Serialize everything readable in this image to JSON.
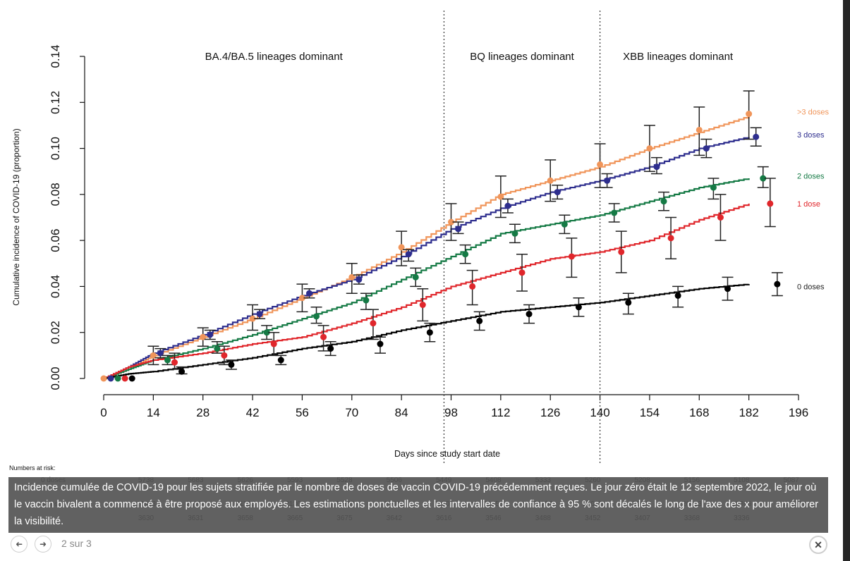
{
  "chart_data": {
    "type": "line",
    "title": "",
    "xlabel": "Days since study start date",
    "ylabel": "Cumulative incidence of COVID-19 (proportion)",
    "xlim": [
      0,
      196
    ],
    "ylim": [
      0,
      0.14
    ],
    "x_ticks": [
      0,
      14,
      28,
      42,
      56,
      70,
      84,
      98,
      112,
      126,
      140,
      154,
      168,
      182,
      196
    ],
    "y_ticks": [
      "0.00",
      "0.02",
      "0.04",
      "0.06",
      "0.08",
      "0.10",
      "0.12",
      "0.14"
    ],
    "grid": false,
    "period_dividers": [
      96,
      140
    ],
    "period_labels": [
      {
        "text": "BA.4/BA.5 lineages dominant",
        "x_center": 48
      },
      {
        "text": "BQ lineages dominant",
        "x_center": 118
      },
      {
        "text": "XBB lineages dominant",
        "x_center": 162
      }
    ],
    "series": [
      {
        "name": ">3 doses",
        "color": "#f0955a",
        "curve": [
          [
            0,
            0
          ],
          [
            7,
            0.004
          ],
          [
            14,
            0.01
          ],
          [
            28,
            0.018
          ],
          [
            42,
            0.026
          ],
          [
            56,
            0.035
          ],
          [
            70,
            0.044
          ],
          [
            84,
            0.055
          ],
          [
            98,
            0.068
          ],
          [
            112,
            0.08
          ],
          [
            126,
            0.086
          ],
          [
            140,
            0.092
          ],
          [
            154,
            0.1
          ],
          [
            168,
            0.107
          ],
          [
            182,
            0.114
          ]
        ],
        "points": [
          {
            "x": 0,
            "y": 0.0,
            "lo": 0.0,
            "hi": 0.0
          },
          {
            "x": 14,
            "y": 0.01,
            "lo": 0.006,
            "hi": 0.014
          },
          {
            "x": 28,
            "y": 0.018,
            "lo": 0.014,
            "hi": 0.022
          },
          {
            "x": 42,
            "y": 0.026,
            "lo": 0.021,
            "hi": 0.032
          },
          {
            "x": 56,
            "y": 0.035,
            "lo": 0.029,
            "hi": 0.041
          },
          {
            "x": 70,
            "y": 0.044,
            "lo": 0.037,
            "hi": 0.05
          },
          {
            "x": 84,
            "y": 0.057,
            "lo": 0.049,
            "hi": 0.064
          },
          {
            "x": 98,
            "y": 0.068,
            "lo": 0.06,
            "hi": 0.076
          },
          {
            "x": 112,
            "y": 0.079,
            "lo": 0.07,
            "hi": 0.088
          },
          {
            "x": 126,
            "y": 0.086,
            "lo": 0.077,
            "hi": 0.095
          },
          {
            "x": 140,
            "y": 0.093,
            "lo": 0.083,
            "hi": 0.102
          },
          {
            "x": 154,
            "y": 0.1,
            "lo": 0.09,
            "hi": 0.11
          },
          {
            "x": 168,
            "y": 0.108,
            "lo": 0.097,
            "hi": 0.118
          },
          {
            "x": 182,
            "y": 0.115,
            "lo": 0.104,
            "hi": 0.125
          }
        ]
      },
      {
        "name": "3 doses",
        "color": "#2e2e8e",
        "curve": [
          [
            0,
            0
          ],
          [
            7,
            0.005
          ],
          [
            14,
            0.011
          ],
          [
            28,
            0.019
          ],
          [
            42,
            0.028
          ],
          [
            56,
            0.036
          ],
          [
            70,
            0.043
          ],
          [
            84,
            0.053
          ],
          [
            98,
            0.065
          ],
          [
            112,
            0.074
          ],
          [
            126,
            0.081
          ],
          [
            140,
            0.086
          ],
          [
            154,
            0.092
          ],
          [
            168,
            0.1
          ],
          [
            182,
            0.105
          ]
        ],
        "points": [
          {
            "x": 2,
            "y": 0.0,
            "lo": 0.0,
            "hi": 0.0
          },
          {
            "x": 16,
            "y": 0.011,
            "lo": 0.009,
            "hi": 0.013
          },
          {
            "x": 30,
            "y": 0.019,
            "lo": 0.017,
            "hi": 0.021
          },
          {
            "x": 44,
            "y": 0.028,
            "lo": 0.026,
            "hi": 0.03
          },
          {
            "x": 58,
            "y": 0.037,
            "lo": 0.035,
            "hi": 0.039
          },
          {
            "x": 72,
            "y": 0.043,
            "lo": 0.041,
            "hi": 0.045
          },
          {
            "x": 86,
            "y": 0.054,
            "lo": 0.051,
            "hi": 0.056
          },
          {
            "x": 100,
            "y": 0.065,
            "lo": 0.063,
            "hi": 0.068
          },
          {
            "x": 114,
            "y": 0.075,
            "lo": 0.072,
            "hi": 0.078
          },
          {
            "x": 128,
            "y": 0.081,
            "lo": 0.078,
            "hi": 0.084
          },
          {
            "x": 142,
            "y": 0.086,
            "lo": 0.083,
            "hi": 0.089
          },
          {
            "x": 156,
            "y": 0.092,
            "lo": 0.089,
            "hi": 0.096
          },
          {
            "x": 170,
            "y": 0.1,
            "lo": 0.096,
            "hi": 0.104
          },
          {
            "x": 184,
            "y": 0.105,
            "lo": 0.101,
            "hi": 0.109
          }
        ]
      },
      {
        "name": "2 doses",
        "color": "#157a45",
        "curve": [
          [
            0,
            0
          ],
          [
            7,
            0.004
          ],
          [
            14,
            0.008
          ],
          [
            28,
            0.013
          ],
          [
            42,
            0.019
          ],
          [
            56,
            0.026
          ],
          [
            70,
            0.033
          ],
          [
            84,
            0.043
          ],
          [
            98,
            0.053
          ],
          [
            112,
            0.063
          ],
          [
            126,
            0.067
          ],
          [
            140,
            0.071
          ],
          [
            154,
            0.077
          ],
          [
            168,
            0.083
          ],
          [
            182,
            0.087
          ]
        ],
        "points": [
          {
            "x": 4,
            "y": 0.0,
            "lo": 0.0,
            "hi": 0.0
          },
          {
            "x": 18,
            "y": 0.008,
            "lo": 0.006,
            "hi": 0.01
          },
          {
            "x": 32,
            "y": 0.013,
            "lo": 0.011,
            "hi": 0.016
          },
          {
            "x": 46,
            "y": 0.02,
            "lo": 0.017,
            "hi": 0.023
          },
          {
            "x": 60,
            "y": 0.027,
            "lo": 0.024,
            "hi": 0.031
          },
          {
            "x": 74,
            "y": 0.034,
            "lo": 0.03,
            "hi": 0.037
          },
          {
            "x": 88,
            "y": 0.044,
            "lo": 0.04,
            "hi": 0.048
          },
          {
            "x": 102,
            "y": 0.054,
            "lo": 0.05,
            "hi": 0.058
          },
          {
            "x": 116,
            "y": 0.063,
            "lo": 0.059,
            "hi": 0.067
          },
          {
            "x": 130,
            "y": 0.067,
            "lo": 0.063,
            "hi": 0.071
          },
          {
            "x": 144,
            "y": 0.072,
            "lo": 0.068,
            "hi": 0.076
          },
          {
            "x": 158,
            "y": 0.077,
            "lo": 0.073,
            "hi": 0.081
          },
          {
            "x": 172,
            "y": 0.083,
            "lo": 0.078,
            "hi": 0.087
          },
          {
            "x": 186,
            "y": 0.087,
            "lo": 0.083,
            "hi": 0.092
          }
        ]
      },
      {
        "name": "1 dose",
        "color": "#e0262b",
        "curve": [
          [
            0,
            0
          ],
          [
            7,
            0.005
          ],
          [
            14,
            0.008
          ],
          [
            28,
            0.011
          ],
          [
            42,
            0.015
          ],
          [
            56,
            0.018
          ],
          [
            70,
            0.024
          ],
          [
            84,
            0.031
          ],
          [
            98,
            0.04
          ],
          [
            112,
            0.046
          ],
          [
            126,
            0.052
          ],
          [
            140,
            0.055
          ],
          [
            154,
            0.06
          ],
          [
            168,
            0.069
          ],
          [
            182,
            0.076
          ]
        ],
        "points": [
          {
            "x": 6,
            "y": 0.0,
            "lo": 0.0,
            "hi": 0.0
          },
          {
            "x": 20,
            "y": 0.007,
            "lo": 0.004,
            "hi": 0.011
          },
          {
            "x": 34,
            "y": 0.01,
            "lo": 0.006,
            "hi": 0.014
          },
          {
            "x": 48,
            "y": 0.015,
            "lo": 0.01,
            "hi": 0.02
          },
          {
            "x": 62,
            "y": 0.018,
            "lo": 0.012,
            "hi": 0.023
          },
          {
            "x": 76,
            "y": 0.024,
            "lo": 0.017,
            "hi": 0.03
          },
          {
            "x": 90,
            "y": 0.032,
            "lo": 0.025,
            "hi": 0.039
          },
          {
            "x": 104,
            "y": 0.04,
            "lo": 0.032,
            "hi": 0.047
          },
          {
            "x": 118,
            "y": 0.046,
            "lo": 0.038,
            "hi": 0.054
          },
          {
            "x": 132,
            "y": 0.053,
            "lo": 0.044,
            "hi": 0.061
          },
          {
            "x": 146,
            "y": 0.055,
            "lo": 0.046,
            "hi": 0.064
          },
          {
            "x": 160,
            "y": 0.061,
            "lo": 0.052,
            "hi": 0.07
          },
          {
            "x": 174,
            "y": 0.07,
            "lo": 0.06,
            "hi": 0.08
          },
          {
            "x": 188,
            "y": 0.076,
            "lo": 0.066,
            "hi": 0.087
          }
        ]
      },
      {
        "name": "0 doses",
        "color": "#000000",
        "curve": [
          [
            0,
            0
          ],
          [
            7,
            0.002
          ],
          [
            14,
            0.003
          ],
          [
            28,
            0.006
          ],
          [
            42,
            0.009
          ],
          [
            56,
            0.013
          ],
          [
            70,
            0.016
          ],
          [
            84,
            0.021
          ],
          [
            98,
            0.025
          ],
          [
            112,
            0.029
          ],
          [
            126,
            0.031
          ],
          [
            140,
            0.033
          ],
          [
            154,
            0.036
          ],
          [
            168,
            0.039
          ],
          [
            182,
            0.041
          ]
        ],
        "points": [
          {
            "x": 8,
            "y": 0.0,
            "lo": 0.0,
            "hi": 0.0
          },
          {
            "x": 22,
            "y": 0.003,
            "lo": 0.002,
            "hi": 0.005
          },
          {
            "x": 36,
            "y": 0.006,
            "lo": 0.004,
            "hi": 0.008
          },
          {
            "x": 50,
            "y": 0.008,
            "lo": 0.006,
            "hi": 0.01
          },
          {
            "x": 64,
            "y": 0.013,
            "lo": 0.01,
            "hi": 0.016
          },
          {
            "x": 78,
            "y": 0.015,
            "lo": 0.011,
            "hi": 0.018
          },
          {
            "x": 92,
            "y": 0.02,
            "lo": 0.016,
            "hi": 0.024
          },
          {
            "x": 106,
            "y": 0.025,
            "lo": 0.021,
            "hi": 0.029
          },
          {
            "x": 120,
            "y": 0.028,
            "lo": 0.024,
            "hi": 0.032
          },
          {
            "x": 134,
            "y": 0.031,
            "lo": 0.027,
            "hi": 0.035
          },
          {
            "x": 148,
            "y": 0.033,
            "lo": 0.028,
            "hi": 0.037
          },
          {
            "x": 162,
            "y": 0.036,
            "lo": 0.031,
            "hi": 0.04
          },
          {
            "x": 176,
            "y": 0.039,
            "lo": 0.034,
            "hi": 0.044
          },
          {
            "x": 190,
            "y": 0.041,
            "lo": 0.036,
            "hi": 0.046
          }
        ]
      }
    ],
    "legend": "right (direct labels)",
    "legend_labels": [
      {
        "text": ">3 doses",
        "y_data": 0.116
      },
      {
        "text": "3 doses",
        "y_data": 0.106
      },
      {
        "text": "2 doses",
        "y_data": 0.088
      },
      {
        "text": "1 dose",
        "y_data": 0.076
      },
      {
        "text": "0 doses",
        "y_data": 0.04
      }
    ]
  },
  "numbers_at_risk": {
    "label": "Numbers at risk:",
    "rows": [
      {
        "name": "0 doses",
        "values": [
          "5738",
          "5683",
          "5626",
          "5593",
          "5528",
          "5506",
          "5449",
          "5408",
          "5333",
          "5260",
          "5208",
          "5156",
          "5108",
          "5087"
        ]
      },
      {
        "name": "3 doses",
        "values": [
          "20998",
          "21024",
          "21156",
          "21368",
          "21509",
          "21696",
          "21702",
          "21555",
          "21257",
          "21020",
          "20641",
          "20613",
          "20396",
          "20187"
        ]
      },
      {
        "name": "",
        "values": [
          "3630",
          "3631",
          "3658",
          "3665",
          "3675",
          "3642",
          "3616",
          "3546",
          "3488",
          "3452",
          "3407",
          "3368",
          "3336",
          ""
        ]
      }
    ]
  },
  "caption": "Incidence cumulée de COVID-19 pour les sujets stratifiée par le nombre de doses de vaccin COVID-19 précédemment reçues. Le jour zéro était le 12 septembre 2022, le jour où le vaccin bivalent a commencé à être proposé aux employés. Les estimations ponctuelles et les intervalles de confiance à 95 % sont décalés le long de l'axe des x pour améliorer la visibilité.",
  "navigation": {
    "prev_icon": "arrow-left-icon",
    "next_icon": "arrow-right-icon",
    "prev_glyph": "◆",
    "next_glyph": "➜",
    "counter": "2 sur 3",
    "close_glyph": "✕"
  }
}
